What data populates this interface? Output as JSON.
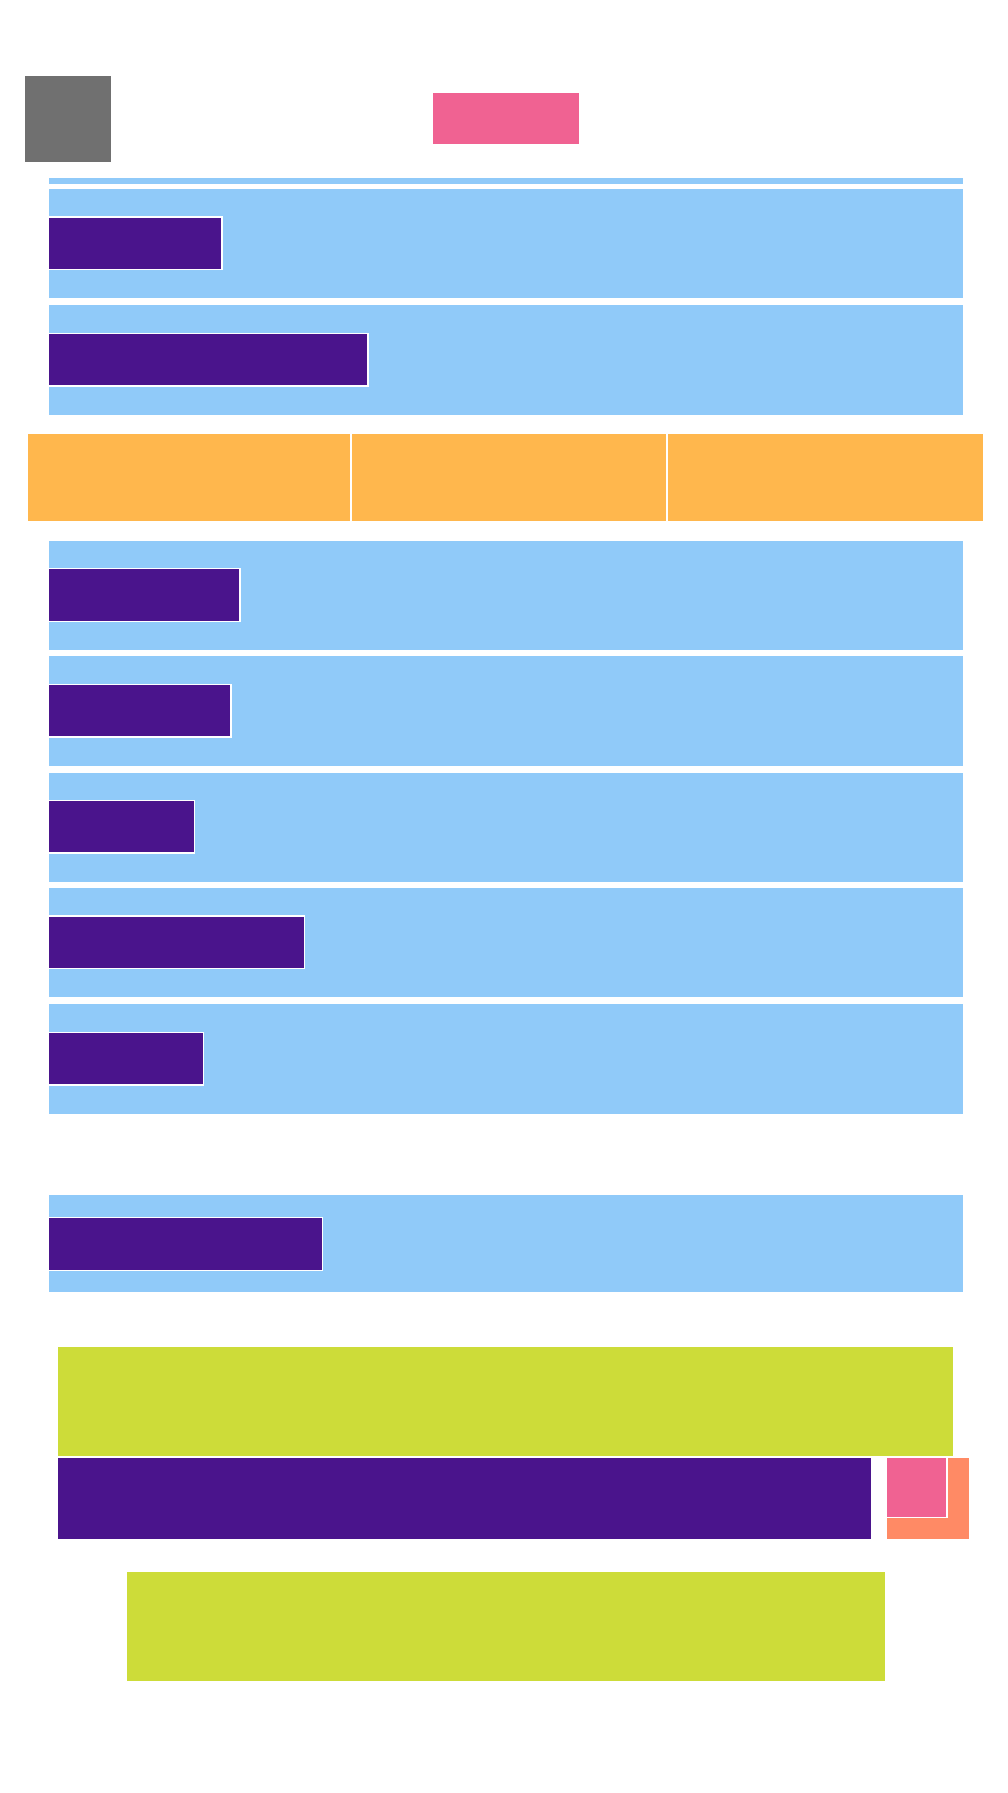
{
  "colors": {
    "background": "#ffffff",
    "menu_block": "#707070",
    "pink": "#f06292",
    "light_blue": "#90caf9",
    "deep_purple": "#4a148c",
    "orange": "#ffb74d",
    "lime": "#cddc39",
    "salmon": "#ff8a65"
  },
  "header": {
    "menu_icon": "menu-block-icon",
    "primary_action": {
      "label": ""
    }
  },
  "top_rows": [
    {
      "label": "",
      "label_fill": 0.19
    },
    {
      "label": "",
      "label_fill": 0.35
    }
  ],
  "tabs": [
    {
      "label": ""
    },
    {
      "label": ""
    },
    {
      "label": ""
    }
  ],
  "list_rows": [
    {
      "label": "",
      "label_fill": 0.21
    },
    {
      "label": "",
      "label_fill": 0.2
    },
    {
      "label": "",
      "label_fill": 0.16
    },
    {
      "label": "",
      "label_fill": 0.28
    },
    {
      "label": "",
      "label_fill": 0.17
    }
  ],
  "single_row": {
    "label": "",
    "label_fill": 0.3
  },
  "footer": {
    "banner_top": {
      "text": ""
    },
    "input_bar": {
      "value": "",
      "placeholder": ""
    },
    "submit": {
      "label": ""
    },
    "banner_bottom": {
      "text": ""
    }
  }
}
